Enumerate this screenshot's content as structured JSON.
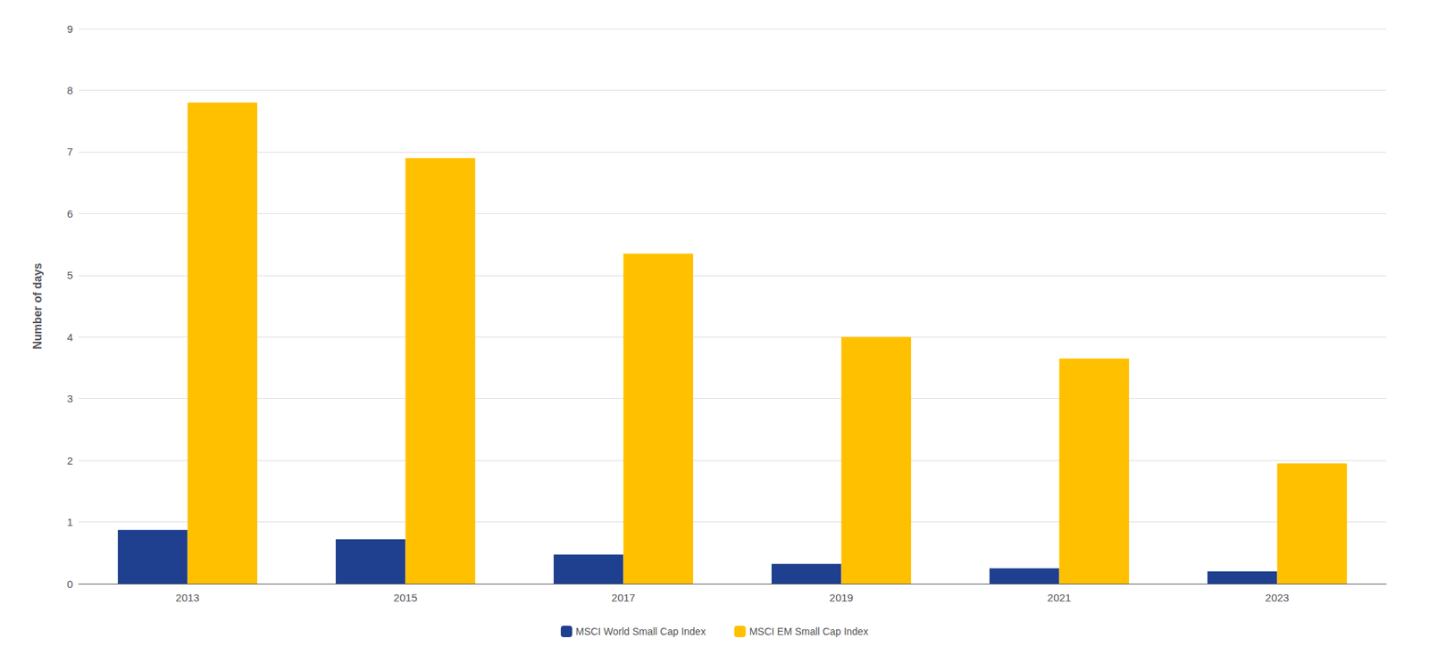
{
  "chart_data": {
    "type": "bar",
    "categories": [
      "2013",
      "2015",
      "2017",
      "2019",
      "2021",
      "2023"
    ],
    "series": [
      {
        "name": "MSCI World Small Cap Index",
        "color": "#1F3F8F",
        "values": [
          0.87,
          0.72,
          0.47,
          0.32,
          0.25,
          0.2
        ]
      },
      {
        "name": "MSCI EM Small Cap Index",
        "color": "#FFC000",
        "values": [
          7.8,
          6.9,
          5.35,
          4.0,
          3.65,
          1.95
        ]
      }
    ],
    "ylabel": "Number of days",
    "ylim": [
      0,
      9
    ],
    "yticks": [
      0,
      1,
      2,
      3,
      4,
      5,
      6,
      7,
      8,
      9
    ],
    "grid": true,
    "legend": "bottom"
  }
}
